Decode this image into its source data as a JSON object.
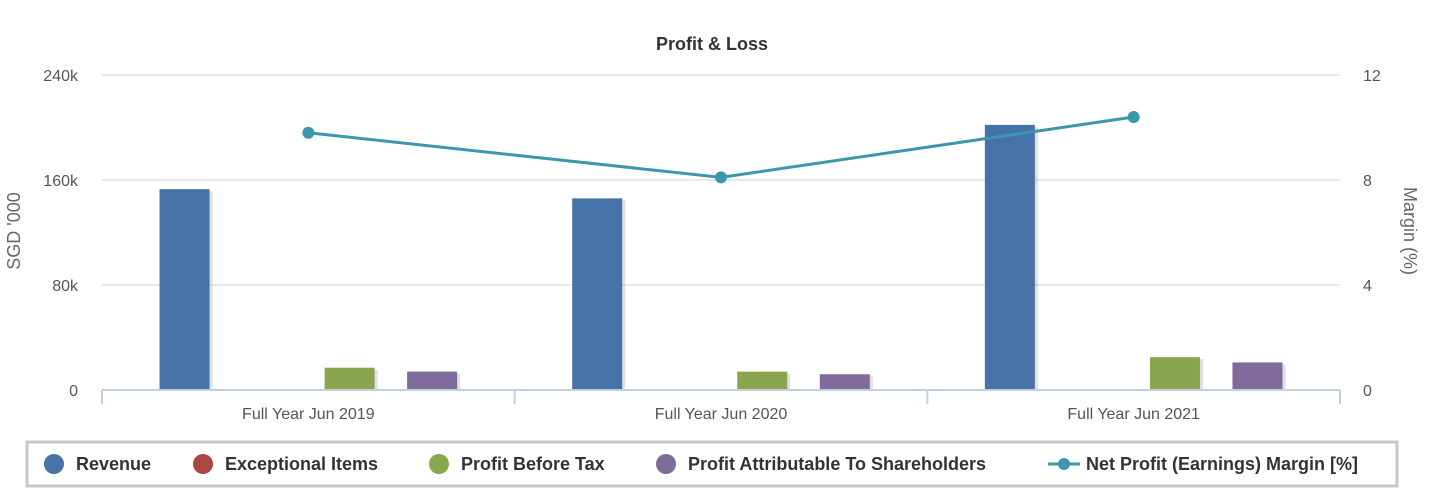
{
  "chart_data": {
    "type": "bar",
    "title": "Profit & Loss",
    "categories": [
      "Full Year Jun 2019",
      "Full Year Jun 2020",
      "Full Year Jun 2021"
    ],
    "y_left": {
      "label": "SGD '000",
      "ticks": [
        "0",
        "80k",
        "160k",
        "240k"
      ],
      "range": [
        0,
        240000
      ]
    },
    "y_right": {
      "label": "Margin (%)",
      "ticks": [
        "0",
        "4",
        "8",
        "12"
      ],
      "range": [
        0,
        12
      ]
    },
    "series": [
      {
        "name": "Revenue",
        "type": "bar",
        "axis": "left",
        "color": "#4572a7",
        "values": [
          153000,
          146000,
          202000
        ]
      },
      {
        "name": "Exceptional Items",
        "type": "bar",
        "axis": "left",
        "color": "#aa4643",
        "values": [
          0,
          0,
          0
        ]
      },
      {
        "name": "Profit Before Tax",
        "type": "bar",
        "axis": "left",
        "color": "#89a54e",
        "values": [
          17000,
          14000,
          25000
        ]
      },
      {
        "name": "Profit Attributable To Shareholders",
        "type": "bar",
        "axis": "left",
        "color": "#80699b",
        "values": [
          14000,
          12000,
          21000
        ]
      },
      {
        "name": "Net Profit (Earnings) Margin [%]",
        "type": "line",
        "axis": "right",
        "color": "#3d96ae",
        "values": [
          9.8,
          8.1,
          10.4
        ]
      }
    ],
    "grid": true,
    "legend_position": "bottom"
  }
}
